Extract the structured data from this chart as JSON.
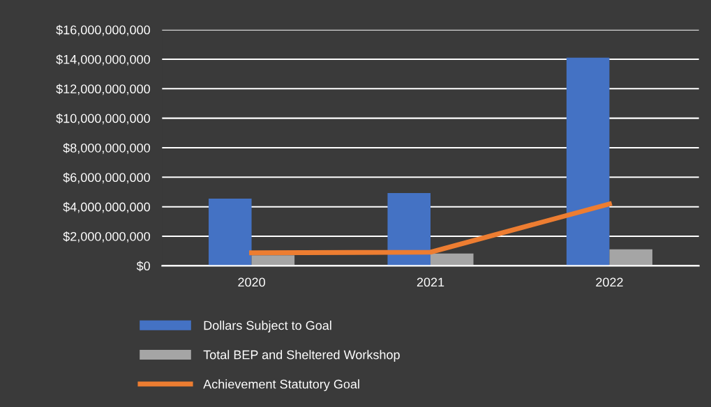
{
  "chart_data": {
    "type": "bar",
    "categories": [
      "2020",
      "2021",
      "2022"
    ],
    "series": [
      {
        "name": "Dollars Subject to Goal",
        "color": "#4472c4",
        "values": [
          4550000000,
          4930000000,
          14100000000
        ]
      },
      {
        "name": "Total BEP and Sheltered Workshop",
        "color": "#a5a5a5",
        "values": [
          710000000,
          830000000,
          1110000000
        ]
      },
      {
        "name": "Achievement Statutory Goal",
        "type": "line",
        "color": "#ed7d31",
        "values": [
          880000000,
          920000000,
          4190000000
        ]
      }
    ],
    "ylim": [
      0,
      16000000000
    ],
    "yticks": [
      {
        "value": 0,
        "label": "$0"
      },
      {
        "value": 2000000000,
        "label": "$2,000,000,000"
      },
      {
        "value": 4000000000,
        "label": "$4,000,000,000"
      },
      {
        "value": 6000000000,
        "label": "$6,000,000,000"
      },
      {
        "value": 8000000000,
        "label": "$8,000,000,000"
      },
      {
        "value": 10000000000,
        "label": "$10,000,000,000"
      },
      {
        "value": 12000000000,
        "label": "$12,000,000,000"
      },
      {
        "value": 14000000000,
        "label": "$14,000,000,000"
      },
      {
        "value": 16000000000,
        "label": "$16,000,000,000"
      }
    ],
    "grid": "y",
    "legend": "bottom",
    "marker": "none",
    "line_style": "solid"
  }
}
